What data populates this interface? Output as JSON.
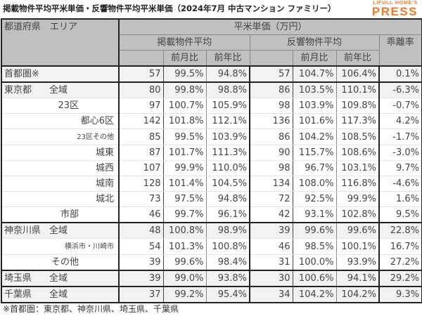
{
  "title": "掲載物件平均平米単価・反響物件平均平米単価（2024年7月 中古マンション ファミリー）",
  "logo": {
    "top": "LIFULL HOME'S",
    "main": "PRESS",
    "color": "#f07a2a"
  },
  "header": {
    "area": "都道府県　エリア",
    "unit_price": "平米単価（万円）",
    "listed_avg": "掲載物件平均",
    "inquiry_avg": "反響物件平均",
    "divergence": "乖離率",
    "mom": "前月比",
    "yoy": "前年比"
  },
  "rows": [
    {
      "pref": "首都圏※",
      "area": "",
      "indent": 0,
      "listed": "57",
      "listed_mom": "99.5%",
      "listed_yoy": "94.8%",
      "inq": "57",
      "inq_mom": "104.7%",
      "inq_yoy": "106.4%",
      "div": "0.1%"
    },
    {
      "pref": "東京都",
      "area": "全域",
      "indent": 0,
      "listed": "80",
      "listed_mom": "99.8%",
      "listed_yoy": "98.8%",
      "inq": "86",
      "inq_mom": "103.5%",
      "inq_yoy": "110.1%",
      "div": "-6.3%"
    },
    {
      "pref": "",
      "area": "23区",
      "indent": 1,
      "listed": "97",
      "listed_mom": "100.7%",
      "listed_yoy": "105.9%",
      "inq": "98",
      "inq_mom": "103.9%",
      "inq_yoy": "109.8%",
      "div": "-0.7%"
    },
    {
      "pref": "",
      "area": "都心6区",
      "indent": 2,
      "listed": "142",
      "listed_mom": "101.8%",
      "listed_yoy": "112.1%",
      "inq": "136",
      "inq_mom": "101.6%",
      "inq_yoy": "117.3%",
      "div": "4.2%"
    },
    {
      "pref": "",
      "area": "23区その他",
      "indent": 2,
      "listed": "85",
      "listed_mom": "99.5%",
      "listed_yoy": "103.9%",
      "inq": "86",
      "inq_mom": "104.2%",
      "inq_yoy": "108.5%",
      "div": "-1.7%"
    },
    {
      "pref": "",
      "area": "城東",
      "indent": 2,
      "listed": "87",
      "listed_mom": "101.7%",
      "listed_yoy": "111.3%",
      "inq": "90",
      "inq_mom": "115.7%",
      "inq_yoy": "108.6%",
      "div": "-3.0%"
    },
    {
      "pref": "",
      "area": "城西",
      "indent": 2,
      "listed": "107",
      "listed_mom": "99.9%",
      "listed_yoy": "110.0%",
      "inq": "98",
      "inq_mom": "96.7%",
      "inq_yoy": "103.1%",
      "div": "9.7%"
    },
    {
      "pref": "",
      "area": "城南",
      "indent": 2,
      "listed": "128",
      "listed_mom": "101.4%",
      "listed_yoy": "104.5%",
      "inq": "134",
      "inq_mom": "108.0%",
      "inq_yoy": "116.8%",
      "div": "-4.6%"
    },
    {
      "pref": "",
      "area": "城北",
      "indent": 2,
      "listed": "73",
      "listed_mom": "97.5%",
      "listed_yoy": "94.8%",
      "inq": "72",
      "inq_mom": "92.5%",
      "inq_yoy": "99.9%",
      "div": "1.6%"
    },
    {
      "pref": "",
      "area": "市部",
      "indent": 1,
      "listed": "46",
      "listed_mom": "99.7%",
      "listed_yoy": "96.1%",
      "inq": "42",
      "inq_mom": "93.1%",
      "inq_yoy": "102.8%",
      "div": "9.5%"
    },
    {
      "pref": "神奈川県",
      "area": "全域",
      "indent": 0,
      "listed": "48",
      "listed_mom": "100.8%",
      "listed_yoy": "98.9%",
      "inq": "39",
      "inq_mom": "99.6%",
      "inq_yoy": "99.6%",
      "div": "22.8%"
    },
    {
      "pref": "",
      "area": "横浜市・川崎市",
      "indent": 2,
      "listed": "54",
      "listed_mom": "101.3%",
      "listed_yoy": "100.8%",
      "inq": "46",
      "inq_mom": "98.5%",
      "inq_yoy": "100.1%",
      "div": "16.7%"
    },
    {
      "pref": "",
      "area": "その他",
      "indent": 1,
      "listed": "39",
      "listed_mom": "99.6%",
      "listed_yoy": "98.4%",
      "inq": "31",
      "inq_mom": "100.0%",
      "inq_yoy": "93.9%",
      "div": "27.2%"
    },
    {
      "pref": "埼玉県",
      "area": "全域",
      "indent": 0,
      "listed": "39",
      "listed_mom": "99.0%",
      "listed_yoy": "93.8%",
      "inq": "30",
      "inq_mom": "100.6%",
      "inq_yoy": "94.1%",
      "div": "29.2%"
    },
    {
      "pref": "千葉県",
      "area": "全域",
      "indent": 0,
      "listed": "37",
      "listed_mom": "99.2%",
      "listed_yoy": "95.4%",
      "inq": "34",
      "inq_mom": "104.2%",
      "inq_yoy": "104.2%",
      "div": "9.3%"
    }
  ],
  "footnote": "※首都圏：東京都、神奈川県、埼玉県、千葉県"
}
